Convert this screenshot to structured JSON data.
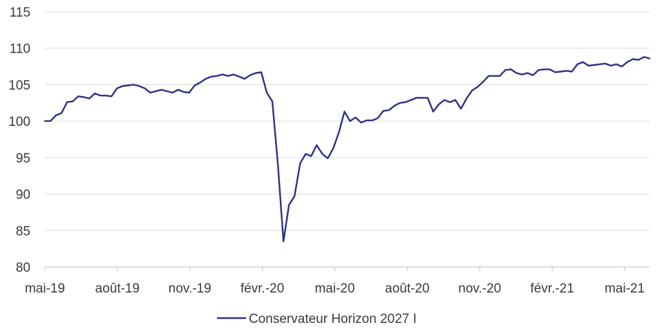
{
  "chart_data": {
    "type": "line",
    "title": "",
    "xlabel": "",
    "ylabel": "",
    "ylim": [
      80,
      115
    ],
    "yticks": [
      80,
      85,
      90,
      95,
      100,
      105,
      110,
      115
    ],
    "xticks": [
      "mai-19",
      "août-19",
      "nov.-19",
      "févr.-20",
      "mai-20",
      "août-20",
      "nov.-20",
      "févr.-21",
      "mai-21"
    ],
    "grid": "horizontal",
    "legend_position": "bottom",
    "series_color": "#2d3184",
    "grid_color": "#d9d9d9",
    "axis_color": "#bfbfbf",
    "series": [
      {
        "name": "Conservateur Horizon 2027 I",
        "values": [
          100.0,
          100.0,
          100.8,
          101.1,
          102.6,
          102.7,
          103.4,
          103.3,
          103.1,
          103.8,
          103.5,
          103.5,
          103.4,
          104.5,
          104.8,
          104.9,
          105.0,
          104.8,
          104.5,
          103.9,
          104.1,
          104.3,
          104.1,
          103.9,
          104.3,
          104.0,
          103.9,
          104.9,
          105.3,
          105.8,
          106.1,
          106.2,
          106.4,
          106.2,
          106.4,
          106.1,
          105.8,
          106.3,
          106.6,
          106.7,
          103.9,
          102.7,
          94.0,
          83.5,
          88.5,
          89.7,
          94.2,
          95.5,
          95.2,
          96.7,
          95.5,
          94.9,
          96.3,
          98.5,
          101.3,
          100.0,
          100.5,
          99.8,
          100.1,
          100.1,
          100.4,
          101.4,
          101.5,
          102.1,
          102.5,
          102.6,
          102.9,
          103.2,
          103.2,
          103.2,
          101.3,
          102.3,
          102.9,
          102.6,
          102.9,
          101.7,
          103.1,
          104.2,
          104.7,
          105.4,
          106.2,
          106.2,
          106.2,
          107.0,
          107.1,
          106.6,
          106.4,
          106.6,
          106.3,
          107.0,
          107.1,
          107.1,
          106.7,
          106.8,
          106.9,
          106.8,
          107.8,
          108.1,
          107.6,
          107.7,
          107.8,
          107.9,
          107.6,
          107.8,
          107.5,
          108.1,
          108.5,
          108.4,
          108.8,
          108.6
        ]
      }
    ]
  }
}
